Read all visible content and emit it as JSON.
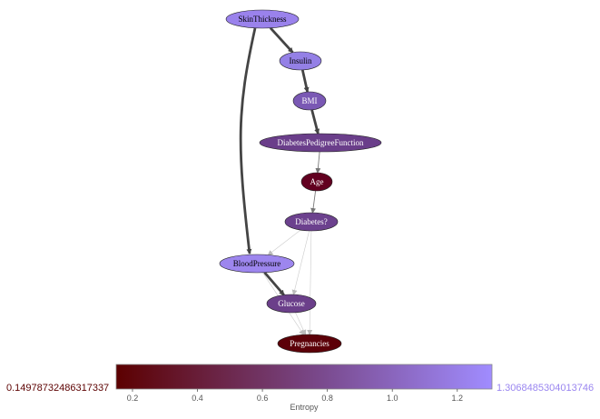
{
  "graph": {
    "nodes": [
      {
        "id": "SkinThickness",
        "label": "SkinThickness",
        "entropy": 1.21,
        "fill": "#9a82ec",
        "text_color": "#000000"
      },
      {
        "id": "Insulin",
        "label": "Insulin",
        "entropy": 1.2,
        "fill": "#9480e6",
        "text_color": "#000000"
      },
      {
        "id": "BMI",
        "label": "BMI",
        "entropy": 0.95,
        "fill": "#7a58b4",
        "text_color": "#ffffff"
      },
      {
        "id": "DiabetesPedigreeFunction",
        "label": "DiabetesPedigreeFunction",
        "entropy": 0.72,
        "fill": "#6a3e8a",
        "text_color": "#ffffff"
      },
      {
        "id": "Age",
        "label": "Age",
        "entropy": 0.18,
        "fill": "#620020",
        "text_color": "#ffffff"
      },
      {
        "id": "Diabetes",
        "label": "Diabetes?",
        "entropy": 0.72,
        "fill": "#6c418e",
        "text_color": "#ffffff"
      },
      {
        "id": "BloodPressure",
        "label": "BloodPressure",
        "entropy": 1.22,
        "fill": "#9d86ee",
        "text_color": "#000000"
      },
      {
        "id": "Glucose",
        "label": "Glucose",
        "entropy": 0.7,
        "fill": "#6b3f8a",
        "text_color": "#ffffff"
      },
      {
        "id": "Pregnancies",
        "label": "Pregnancies",
        "entropy": 0.16,
        "fill": "#5c0008",
        "text_color": "#ffffff"
      }
    ],
    "edges": [
      {
        "from": "SkinThickness",
        "to": "Insulin",
        "strength": "strong"
      },
      {
        "from": "SkinThickness",
        "to": "BloodPressure",
        "strength": "strong"
      },
      {
        "from": "Insulin",
        "to": "BMI",
        "strength": "strong"
      },
      {
        "from": "BMI",
        "to": "DiabetesPedigreeFunction",
        "strength": "strong"
      },
      {
        "from": "DiabetesPedigreeFunction",
        "to": "Age",
        "strength": "weak"
      },
      {
        "from": "Age",
        "to": "Diabetes",
        "strength": "weak"
      },
      {
        "from": "Diabetes",
        "to": "BloodPressure",
        "strength": "faint"
      },
      {
        "from": "Diabetes",
        "to": "Glucose",
        "strength": "faint"
      },
      {
        "from": "Diabetes",
        "to": "Pregnancies",
        "strength": "faint"
      },
      {
        "from": "BloodPressure",
        "to": "Glucose",
        "strength": "strong"
      },
      {
        "from": "BloodPressure",
        "to": "Pregnancies",
        "strength": "faint"
      },
      {
        "from": "Glucose",
        "to": "Pregnancies",
        "strength": "faint"
      }
    ]
  },
  "colorbar": {
    "min_label": "0.14978732486317337",
    "max_label": "1.3068485304013746",
    "min_value": 0.14978732486317337,
    "max_value": 1.3068485304013746,
    "ticks": [
      0.2,
      0.4,
      0.6,
      0.8,
      1.0,
      1.2
    ],
    "tick_labels": [
      "0.2",
      "0.4",
      "0.6",
      "0.8",
      "1.0",
      "1.2"
    ],
    "axis_title": "Entropy",
    "color_low": "#5c0000",
    "color_mid": "#7a4a8e",
    "color_high": "#a08cff",
    "min_label_color": "#5c0000",
    "max_label_color": "#9a86f0"
  }
}
